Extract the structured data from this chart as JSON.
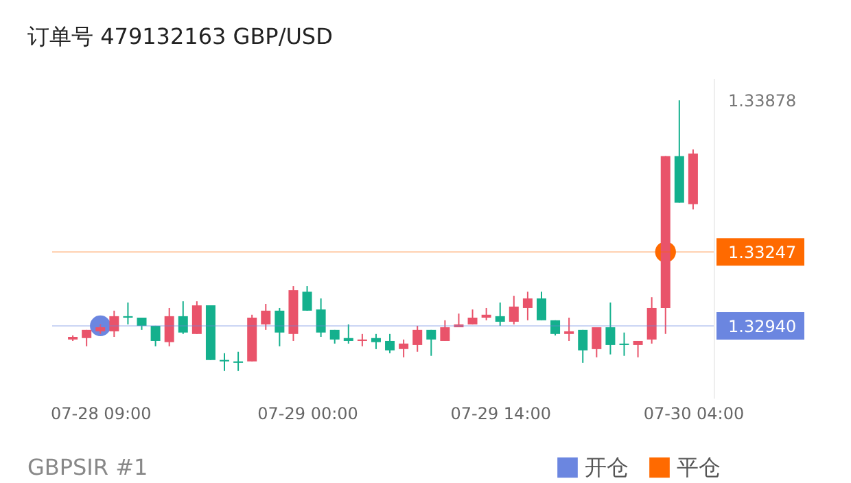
{
  "chart_data": {
    "type": "candlestick",
    "title": "订单号 479132163 GBP/USD",
    "annotations": [
      "GBPSIR #1"
    ],
    "x": [
      "--07-28T07:00",
      "--07-28T08:00",
      "--07-28T09:00",
      "--07-28T10:00",
      "--07-28T11:00",
      "--07-28T12:00",
      "--07-28T13:00",
      "--07-28T14:00",
      "--07-28T15:00",
      "--07-28T16:00",
      "--07-28T17:00",
      "--07-28T18:00",
      "--07-28T19:00",
      "--07-28T20:00",
      "--07-28T21:00",
      "--07-28T22:00",
      "--07-28T23:00",
      "--07-29T00:00",
      "--07-29T01:00",
      "--07-29T02:00",
      "--07-29T03:00",
      "--07-29T04:00",
      "--07-29T05:00",
      "--07-29T06:00",
      "--07-29T07:00",
      "--07-29T08:00",
      "--07-29T09:00",
      "--07-29T10:00",
      "--07-29T11:00",
      "--07-29T12:00",
      "--07-29T13:00",
      "--07-29T14:00",
      "--07-29T15:00",
      "--07-29T16:00",
      "--07-29T17:00",
      "--07-29T18:00",
      "--07-29T19:00",
      "--07-29T20:00",
      "--07-29T21:00",
      "--07-29T22:00",
      "--07-29T23:00",
      "--07-30T00:00",
      "--07-30T01:00",
      "--07-30T02:00",
      "--07-30T03:00",
      "--07-30T04:00"
    ],
    "ohlc": [
      [
        1.32883,
        1.329,
        1.32877,
        1.32894
      ],
      [
        1.32889,
        1.32923,
        1.32855,
        1.32923
      ],
      [
        1.32917,
        1.32946,
        1.32906,
        1.32934
      ],
      [
        1.32917,
        1.33003,
        1.32894,
        1.3298
      ],
      [
        1.3298,
        1.33037,
        1.32946,
        1.32974
      ],
      [
        1.32974,
        1.32974,
        1.32923,
        1.3294
      ],
      [
        1.3294,
        1.3294,
        1.32855,
        1.32877
      ],
      [
        1.32872,
        1.33014,
        1.32855,
        1.3298
      ],
      [
        1.3298,
        1.33042,
        1.32906,
        1.32912
      ],
      [
        1.32906,
        1.33042,
        1.32906,
        1.33025
      ],
      [
        1.33025,
        1.33025,
        1.32798,
        1.32798
      ],
      [
        1.32798,
        1.32826,
        1.32752,
        1.32792
      ],
      [
        1.32792,
        1.32832,
        1.32752,
        1.32786
      ],
      [
        1.32792,
        1.32986,
        1.32792,
        1.32974
      ],
      [
        1.32946,
        1.33031,
        1.32923,
        1.33003
      ],
      [
        1.33003,
        1.33014,
        1.32855,
        1.32912
      ],
      [
        1.32906,
        1.33105,
        1.32877,
        1.33088
      ],
      [
        1.33082,
        1.33105,
        1.33003,
        1.33003
      ],
      [
        1.33008,
        1.33054,
        1.32894,
        1.32912
      ],
      [
        1.32923,
        1.32923,
        1.32866,
        1.32883
      ],
      [
        1.32889,
        1.32946,
        1.32866,
        1.32877
      ],
      [
        1.32877,
        1.32906,
        1.32855,
        1.32883
      ],
      [
        1.32889,
        1.32906,
        1.32843,
        1.32872
      ],
      [
        1.32877,
        1.32906,
        1.32826,
        1.32838
      ],
      [
        1.32843,
        1.32883,
        1.32809,
        1.32866
      ],
      [
        1.3286,
        1.3294,
        1.32832,
        1.32923
      ],
      [
        1.32923,
        1.32923,
        1.32815,
        1.32883
      ],
      [
        1.32877,
        1.32963,
        1.32877,
        1.32934
      ],
      [
        1.32934,
        1.32991,
        1.32934,
        1.32946
      ],
      [
        1.32946,
        1.33008,
        1.32946,
        1.32974
      ],
      [
        1.32974,
        1.33014,
        1.32963,
        1.32986
      ],
      [
        1.3298,
        1.33037,
        1.3294,
        1.32957
      ],
      [
        1.32957,
        1.33065,
        1.32946,
        1.3302
      ],
      [
        1.33014,
        1.33082,
        1.32963,
        1.33054
      ],
      [
        1.33054,
        1.33082,
        1.32963,
        1.32963
      ],
      [
        1.32963,
        1.32963,
        1.329,
        1.32906
      ],
      [
        1.32906,
        1.32974,
        1.32877,
        1.32917
      ],
      [
        1.32923,
        1.32923,
        1.32786,
        1.32838
      ],
      [
        1.32843,
        1.32934,
        1.32809,
        1.32934
      ],
      [
        1.32934,
        1.33037,
        1.32821,
        1.3286
      ],
      [
        1.32866,
        1.32912,
        1.32815,
        1.3286
      ],
      [
        1.3286,
        1.32877,
        1.32809,
        1.32877
      ],
      [
        1.32883,
        1.33059,
        1.32866,
        1.33014
      ],
      [
        1.33014,
        1.33646,
        1.32906,
        1.33646
      ],
      [
        1.33646,
        1.33878,
        1.33452,
        1.33452
      ],
      [
        1.33446,
        1.33674,
        1.33424,
        1.33657
      ]
    ],
    "colors": [
      "#e9536a",
      "#e9536a",
      "#e9536a",
      "#e9536a",
      "#14b08d",
      "#14b08d",
      "#14b08d",
      "#e9536a",
      "#14b08d",
      "#e9536a",
      "#14b08d",
      "#14b08d",
      "#14b08d",
      "#e9536a",
      "#e9536a",
      "#14b08d",
      "#e9536a",
      "#14b08d",
      "#14b08d",
      "#14b08d",
      "#14b08d",
      "#e9536a",
      "#14b08d",
      "#14b08d",
      "#e9536a",
      "#e9536a",
      "#14b08d",
      "#e9536a",
      "#e9536a",
      "#e9536a",
      "#e9536a",
      "#14b08d",
      "#e9536a",
      "#e9536a",
      "#14b08d",
      "#14b08d",
      "#e9536a",
      "#14b08d",
      "#e9536a",
      "#14b08d",
      "#14b08d",
      "#e9536a",
      "#e9536a",
      "#e9536a",
      "#14b08d",
      "#e9536a"
    ],
    "series": [
      {
        "type": "scatter",
        "name": "开仓",
        "color": "#6b86e0",
        "x": [
          "--07-28T09:00"
        ],
        "values": [
          1.3294
        ]
      },
      {
        "type": "scatter",
        "name": "平仓",
        "color": "#ff6a00",
        "x": [
          "--07-30T02:00"
        ],
        "values": [
          1.33247
        ]
      }
    ],
    "marker": "circle",
    "xlim": [
      "--07-28T06:00",
      "--07-30T05:00"
    ],
    "xticks": [
      {
        "value": "--07-28T09:00",
        "label": "07-28 09:00"
      },
      {
        "value": "--07-29T00:00",
        "label": "07-29 00:00"
      },
      {
        "value": "--07-29T14:00",
        "label": "07-29 14:00"
      },
      {
        "value": "--07-30T04:00",
        "label": "07-30 04:00"
      }
    ],
    "ylim": [
      1.3264,
      1.3397
    ],
    "yticks": [
      {
        "value": 1.3294,
        "label": "1.32940"
      },
      1.33247,
      1.33878
    ],
    "ref_lines": [
      {
        "axis": "y",
        "value": 1.33247,
        "color": "#ff6a00"
      },
      {
        "axis": "y",
        "value": 1.3294,
        "color": "#6b86e0"
      }
    ],
    "legend": "bottom right"
  }
}
